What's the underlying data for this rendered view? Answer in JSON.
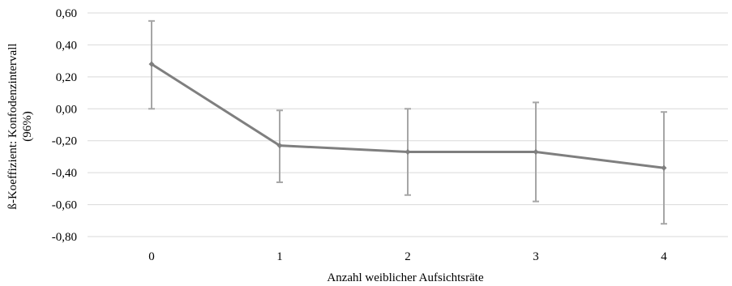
{
  "chart_data": {
    "type": "line",
    "title": "",
    "xlabel": "Anzahl weiblicher Aufsichtsräte",
    "ylabel_lines": [
      "ß-Koeffizient: Konfodenzintervall",
      "(96%)"
    ],
    "categories": [
      "0",
      "1",
      "2",
      "3",
      "4"
    ],
    "series": [
      {
        "values": [
          0.28,
          -0.23,
          -0.27,
          -0.27,
          -0.37
        ],
        "lower": [
          0.0,
          -0.46,
          -0.54,
          -0.58,
          -0.72
        ],
        "upper": [
          0.55,
          -0.01,
          0.0,
          0.04,
          -0.02
        ]
      }
    ],
    "ylim": [
      -0.8,
      0.6
    ],
    "yticks": [
      0.6,
      0.4,
      0.2,
      0.0,
      -0.2,
      -0.4,
      -0.6,
      -0.8
    ],
    "ytick_labels": [
      "0,60",
      "0,40",
      "0,20",
      "0,00",
      "-0,20",
      "-0,40",
      "-0,60",
      "-0,80"
    ],
    "grid": true,
    "line_color": "#7f7f7f",
    "errorbar_color": "#a6a6a6",
    "grid_color": "#d9d9d9"
  }
}
